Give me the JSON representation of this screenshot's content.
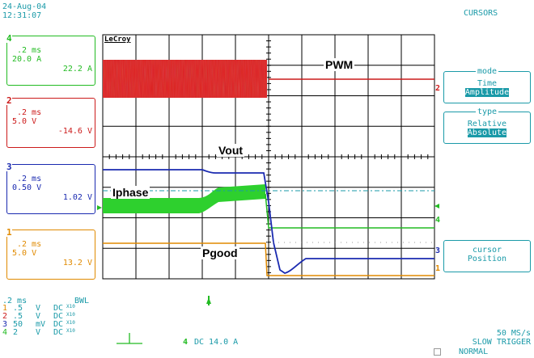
{
  "header": {
    "date": "24-Aug-04",
    "time": "12:31:07",
    "mode_title": "CURSORS"
  },
  "brand": "LeCroy",
  "channels": [
    {
      "num": "4",
      "timebase": ".2 ms",
      "scale": "20.0 A",
      "value": "22.2 A",
      "color": "#22bb22"
    },
    {
      "num": "2",
      "timebase": ".2 ms",
      "scale": "5.0 V",
      "value": "-14.6 V",
      "color": "#cc1a1a"
    },
    {
      "num": "3",
      "timebase": ".2 ms",
      "scale": "0.50 V",
      "value": "1.02 V",
      "color": "#1a2ab0"
    },
    {
      "num": "1",
      "timebase": ".2 ms",
      "scale": "5.0 V",
      "value": "13.2 V",
      "color": "#e08a00"
    }
  ],
  "menu": {
    "mode": {
      "title": "mode",
      "options": [
        "Time",
        "Amplitude"
      ],
      "selected": "Amplitude"
    },
    "type": {
      "title": "type",
      "options": [
        "Relative",
        "Absolute"
      ],
      "selected": "Absolute"
    },
    "cursor": {
      "line1": "cursor",
      "line2": "Position"
    }
  },
  "trace_labels": {
    "pwm": "PWM",
    "vout": "Vout",
    "iphase": "Iphase",
    "pgood": "Pgood"
  },
  "trace_markers": {
    "pwm": "2",
    "iphase": "4",
    "vout": "3",
    "pgood": "1"
  },
  "settings": {
    "timebase": ".2 ms",
    "bwl": "BWL",
    "rows": [
      {
        "ch": "1",
        "scale": ".5",
        "unit": "V",
        "coupling": "DC",
        "probe": "X10",
        "color": "#e08a00"
      },
      {
        "ch": "2",
        "scale": ".5",
        "unit": "V",
        "coupling": "DC",
        "probe": "X10",
        "color": "#cc1a1a"
      },
      {
        "ch": "3",
        "scale": "50",
        "unit": "mV",
        "coupling": "DC",
        "probe": "X10",
        "color": "#1a2ab0"
      },
      {
        "ch": "4",
        "scale": "2",
        "unit": "V",
        "coupling": "DC",
        "probe": "X10",
        "color": "#22bb22"
      }
    ]
  },
  "trigger": {
    "channel": "4",
    "text": "DC 14.0 A",
    "rate": "50 MS/s",
    "mode": "SLOW TRIGGER",
    "state": "NORMAL"
  },
  "colors": {
    "accent": "#1a9aa8",
    "ch1": "#e08a00",
    "ch2": "#cc1a1a",
    "ch3": "#1a2ab0",
    "ch4": "#22bb22"
  }
}
